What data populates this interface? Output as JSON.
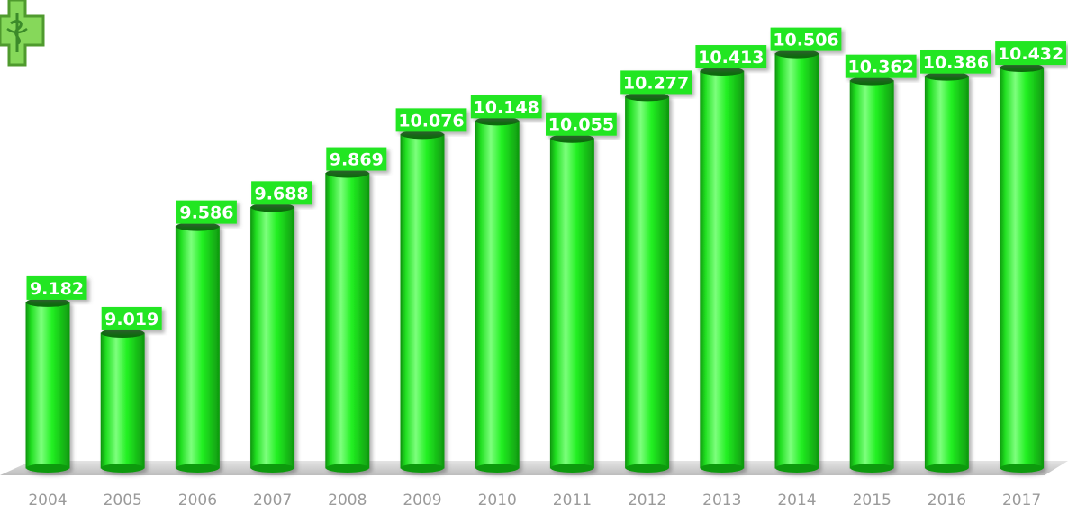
{
  "chart_data": {
    "type": "bar",
    "title": "",
    "xlabel": "",
    "ylabel": "",
    "categories": [
      "2004",
      "2005",
      "2006",
      "2007",
      "2008",
      "2009",
      "2010",
      "2011",
      "2012",
      "2013",
      "2014",
      "2015",
      "2016",
      "2017"
    ],
    "values": [
      9.182,
      9.019,
      9.586,
      9.688,
      9.869,
      10.076,
      10.148,
      10.055,
      10.277,
      10.413,
      10.506,
      10.362,
      10.386,
      10.432
    ],
    "data_labels": [
      "9.182",
      "9.019",
      "9.586",
      "9.688",
      "9.869",
      "10.076",
      "10.148",
      "10.055",
      "10.277",
      "10.413",
      "10.506",
      "10.362",
      "10.386",
      "10.432"
    ],
    "ylim": [
      8.3,
      10.6
    ],
    "grid": false,
    "legend": "none",
    "bar_style": "3d-cylinder",
    "colors": {
      "bar": "#22f022",
      "bar_highlight": "#7dff7d",
      "bar_shade": "#0f9a0f",
      "bar_top": "#0c6a0c",
      "label_bg": "#22e622",
      "label_text": "#ffffff",
      "floor": "#cccccc",
      "tick_text": "#9a9a9a"
    }
  },
  "logo": {
    "icon": "pharmacy-cross-icon",
    "colors": {
      "cross": "#7ad14a",
      "cross_border": "#4f9a2e",
      "symbol": "#3b8a2a"
    }
  }
}
